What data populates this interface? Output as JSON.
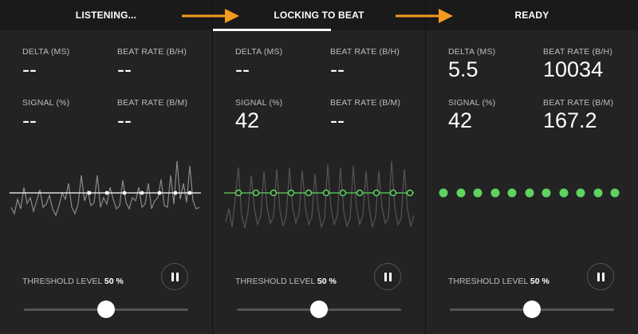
{
  "panels": [
    {
      "title": "LISTENING...",
      "delta_label": "DELTA (MS)",
      "delta_value": "--",
      "beat_bh_label": "BEAT RATE (B/H)",
      "beat_bh_value": "--",
      "signal_label": "SIGNAL (%)",
      "signal_value": "--",
      "beat_bm_label": "BEAT RATE (B/M)",
      "beat_bm_value": "--",
      "threshold_label": "THRESHOLD LEVEL",
      "threshold_value": "50 %",
      "threshold_level": 0.5,
      "beat_markers": "white-dots"
    },
    {
      "title": "LOCKING TO BEAT",
      "delta_label": "DELTA (MS)",
      "delta_value": "--",
      "beat_bh_label": "BEAT RATE (B/H)",
      "beat_bh_value": "--",
      "signal_label": "SIGNAL (%)",
      "signal_value": "42",
      "beat_bm_label": "BEAT RATE (B/M)",
      "beat_bm_value": "--",
      "threshold_label": "THRESHOLD LEVEL",
      "threshold_value": "50 %",
      "threshold_level": 0.5,
      "beat_markers": "green-rings"
    },
    {
      "title": "READY",
      "delta_label": "DELTA (MS)",
      "delta_value": "5.5",
      "beat_bh_label": "BEAT RATE (B/H)",
      "beat_bh_value": "10034",
      "signal_label": "SIGNAL (%)",
      "signal_value": "42",
      "beat_bm_label": "BEAT RATE (B/M)",
      "beat_bm_value": "167.2",
      "threshold_label": "THRESHOLD LEVEL",
      "threshold_value": "50 %",
      "threshold_level": 0.5,
      "beat_markers": "green-dots"
    }
  ],
  "colors": {
    "arrow": "#f39a1e",
    "beat_green": "#5fd35f",
    "background": "#232323"
  },
  "icons": {
    "arrow": "arrow-right-icon",
    "pause": "pause-icon"
  }
}
